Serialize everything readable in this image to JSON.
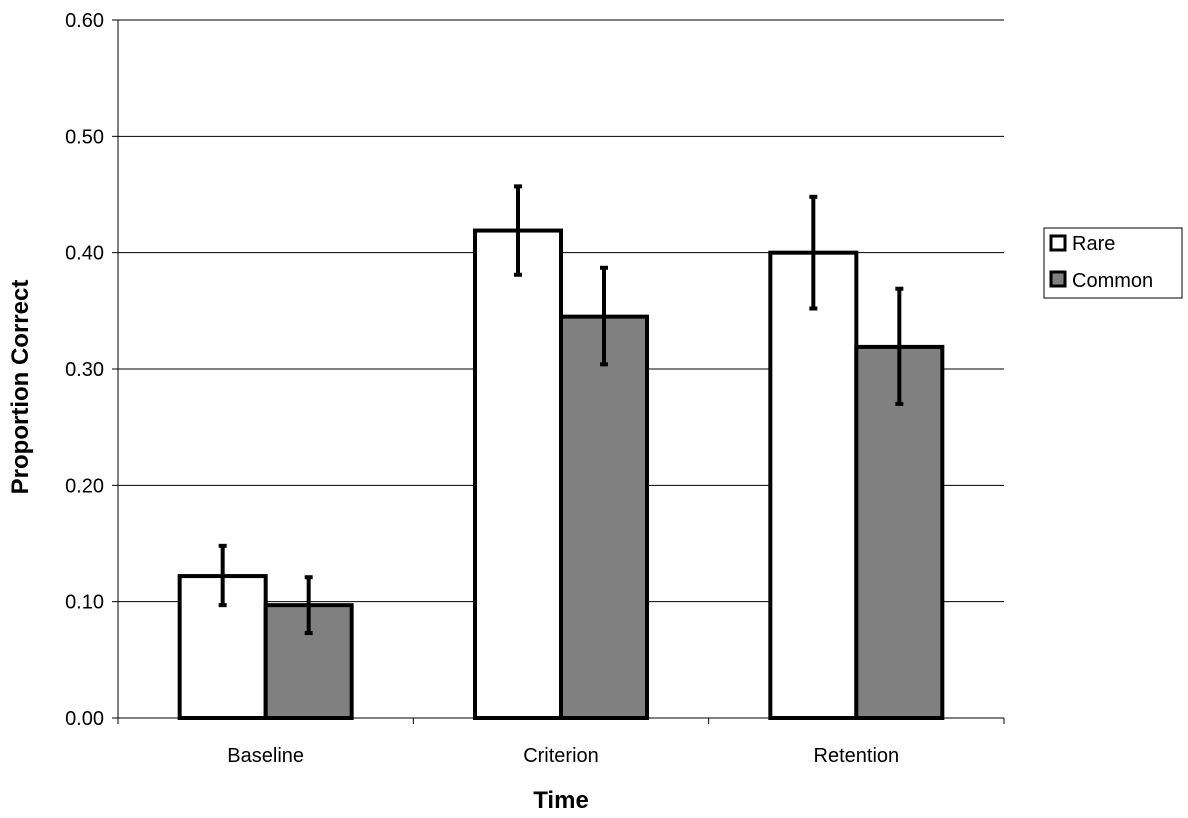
{
  "chart_data": {
    "type": "bar",
    "title": "",
    "xlabel": "Time",
    "ylabel": "Proportion Correct",
    "categories": [
      "Baseline",
      "Criterion",
      "Retention"
    ],
    "ylim": [
      0,
      0.6
    ],
    "yticks": [
      "0.00",
      "0.10",
      "0.20",
      "0.30",
      "0.40",
      "0.50",
      "0.60"
    ],
    "grid": true,
    "legend_position": "right",
    "series": [
      {
        "name": "Rare",
        "color": "#ffffff",
        "values": [
          0.122,
          0.419,
          0.4
        ],
        "error_low": [
          0.097,
          0.381,
          0.352
        ],
        "error_high": [
          0.148,
          0.457,
          0.448
        ]
      },
      {
        "name": "Common",
        "color": "#808080",
        "values": [
          0.097,
          0.345,
          0.319
        ],
        "error_low": [
          0.073,
          0.304,
          0.27
        ],
        "error_high": [
          0.121,
          0.387,
          0.369
        ]
      }
    ]
  }
}
